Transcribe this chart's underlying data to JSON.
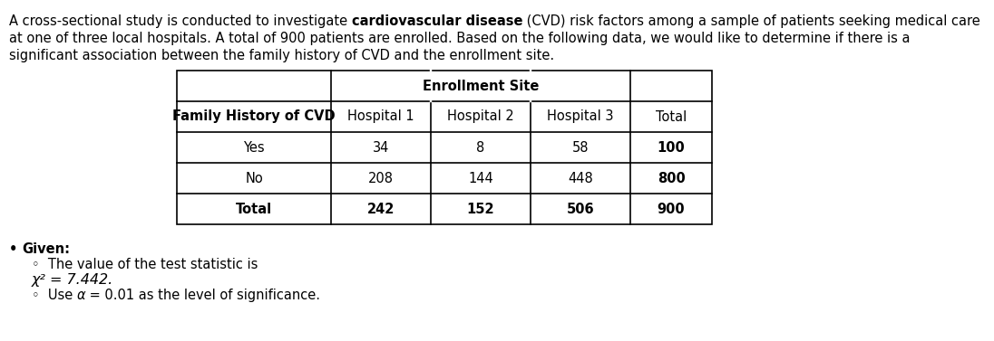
{
  "intro_text_parts": [
    {
      "text": "A cross-sectional study is conducted to investigate ",
      "bold": false
    },
    {
      "text": "cardiovascular disease",
      "bold": true
    },
    {
      "text": " (CVD) risk factors among a sample of patients seeking medical care\nat one of three local hospitals. A total of 900 patients are enrolled. Based on the following data, we would like to determine if there is a\nsignificant association between the family history of CVD and the enrollment site.",
      "bold": false
    }
  ],
  "table_header_group": "Enrollment Site",
  "col_headers": [
    "Family History of CVD",
    "Hospital 1",
    "Hospital 2",
    "Hospital 3",
    "Total"
  ],
  "rows": [
    [
      "Yes",
      "34",
      "8",
      "58",
      "100"
    ],
    [
      "No",
      "208",
      "144",
      "448",
      "800"
    ],
    [
      "Total",
      "242",
      "152",
      "506",
      "900"
    ]
  ],
  "bullet_given_label": "Given:",
  "given_items": [
    "The value of the test statistic is",
    "χ² = 7.442.",
    "Use α = 0.01 as the level of significance."
  ],
  "bg_color": "#ffffff",
  "table_border_color": "#000000",
  "text_color": "#000000",
  "font_size_body": 10.5,
  "font_size_table": 10.5
}
